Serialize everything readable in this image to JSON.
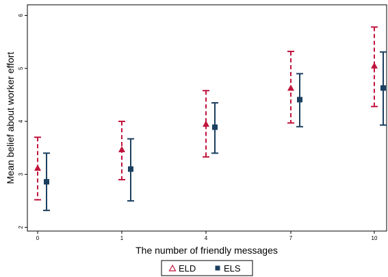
{
  "chart_data": {
    "type": "scatter",
    "xlabel": "The number of friendly messages",
    "ylabel": "Mean belief about worker effort",
    "categories": [
      "0",
      "1",
      "4",
      "7",
      "10"
    ],
    "ylim": [
      1.93,
      6.2
    ],
    "yticks": [
      "2",
      "3",
      "4",
      "5",
      "6"
    ],
    "grid": false,
    "legend_position": "bottom-center",
    "series": [
      {
        "name": "ELD",
        "marker": "triangle",
        "color": "#c0143c",
        "line_style": "dashed",
        "values": [
          3.12,
          3.47,
          3.95,
          4.63,
          5.05
        ],
        "ci_low": [
          2.52,
          2.9,
          3.33,
          3.97,
          4.28
        ],
        "ci_high": [
          3.7,
          4.0,
          4.58,
          5.32,
          5.78
        ]
      },
      {
        "name": "ELS",
        "marker": "square",
        "color": "#1b3f5f",
        "line_style": "solid",
        "values": [
          2.86,
          3.1,
          3.89,
          4.41,
          4.63
        ],
        "ci_low": [
          2.32,
          2.5,
          3.4,
          3.9,
          3.93
        ],
        "ci_high": [
          3.4,
          3.67,
          4.35,
          4.9,
          5.31
        ]
      }
    ]
  }
}
